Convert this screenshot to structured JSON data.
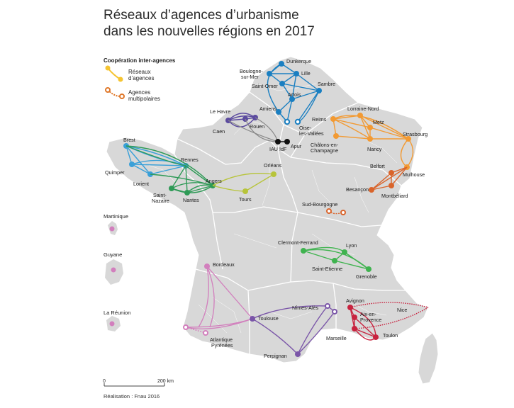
{
  "title": {
    "line1": "Réseaux d’agences d’urbanisme",
    "line2": "dans les nouvelles régions en 2017"
  },
  "legend": {
    "heading": "Coopération inter-agences",
    "items": [
      {
        "label_line1": "Réseaux",
        "label_line2": "d’agences",
        "style": "solid",
        "color": "#f5c431"
      },
      {
        "label_line1": "Agences",
        "label_line2": "multipolaires",
        "style": "dashed-hollow",
        "color": "#e0782a"
      }
    ]
  },
  "territories": [
    {
      "name": "Martinique"
    },
    {
      "name": "Guyane"
    },
    {
      "name": "La Réunion"
    }
  ],
  "networks": [
    {
      "id": "hauts-de-france",
      "color": "#1a7fc1",
      "cities": [
        "Dunkerque",
        "Boulogne-sur-Mer",
        "Lille",
        "Saint-Omer",
        "Artois",
        "Sambre",
        "Amiens",
        "Oise-les-Vallées"
      ]
    },
    {
      "id": "normandie",
      "color": "#5b4a9f",
      "cities": [
        "Le Havre",
        "Rouen",
        "Caen"
      ]
    },
    {
      "id": "ile-de-france",
      "color": "#111111",
      "cities": [
        "IAU IdF",
        "Apur"
      ]
    },
    {
      "id": "grand-est",
      "color": "#f29a33",
      "cities": [
        "Reims",
        "Lorraine-Nord",
        "Metz",
        "Châlons-en-Champagne",
        "Nancy",
        "Strasbourg"
      ]
    },
    {
      "id": "bretagne",
      "color": "#3aa0d8",
      "cities": [
        "Brest",
        "Quimper",
        "Lorient",
        "Rennes"
      ]
    },
    {
      "id": "pays-de-la-loire",
      "color": "#2e9a56",
      "cities": [
        "Saint-Nazaire",
        "Nantes",
        "Angers"
      ]
    },
    {
      "id": "centre",
      "color": "#b7c43a",
      "cities": [
        "Orléans",
        "Tours"
      ]
    },
    {
      "id": "bourgogne-franche-comte",
      "color": "#d9642b",
      "cities": [
        "Belfort",
        "Mulhouse",
        "Besançon",
        "Montbéliard",
        "Sud-Bourgogne"
      ]
    },
    {
      "id": "auvergne-rhone-alpes",
      "color": "#3fb34f",
      "cities": [
        "Clermont-Ferrand",
        "Lyon",
        "Saint-Etienne",
        "Grenoble"
      ]
    },
    {
      "id": "nouvelle-aquitaine",
      "color": "#d27fbd",
      "cities": [
        "Bordeaux",
        "Atlantique Pyrénées"
      ]
    },
    {
      "id": "occitanie",
      "color": "#7a55a8",
      "cities": [
        "Toulouse",
        "Nîmes-Alès",
        "Perpignan"
      ]
    },
    {
      "id": "paca",
      "color": "#c8233f",
      "cities": [
        "Avignon",
        "Aix-en-Provence",
        "Marseille",
        "Toulon",
        "Nice"
      ]
    }
  ],
  "labels": {
    "dunkerque": "Dunkerque",
    "boulogne1": "Boulogne-",
    "boulogne2": "sur-Mer",
    "lille": "Lille",
    "saintomer": "Saint-Omer",
    "artois": "Artois",
    "sambre": "Sambre",
    "amiens": "Amiens",
    "oise1": "Oise-",
    "oise2": "les-Vallées",
    "lehavre": "Le Havre",
    "rouen": "Rouen",
    "caen": "Caen",
    "iau": "IAU IdF",
    "apur": "Apur",
    "reims": "Reims",
    "lorraine": "Lorraine-Nord",
    "metz": "Metz",
    "strasbourg": "Strasbourg",
    "chalons1": "Châlons-en-",
    "chalons2": "Champagne",
    "nancy": "Nancy",
    "brest": "Brest",
    "rennes": "Rennes",
    "quimper": "Quimper",
    "lorient": "Lorient",
    "saintnazaire1": "Saint-",
    "saintnazaire2": "Nazaire",
    "nantes": "Nantes",
    "angers": "Angers",
    "orleans": "Orléans",
    "tours": "Tours",
    "belfort": "Belfort",
    "mulhouse": "Mulhouse",
    "besancon": "Besançon",
    "montbeliard": "Montbéliard",
    "sudbourgogne": "Sud-Bourgogne",
    "clermont": "Clermont-Ferrand",
    "lyon": "Lyon",
    "saintetienne": "Saint-Etienne",
    "grenoble": "Grenoble",
    "bordeaux": "Bordeaux",
    "atlantique1": "Atlantique",
    "atlantique2": "Pyrénées",
    "toulouse": "Toulouse",
    "nimes": "Nîmes-Alès",
    "perpignan": "Perpignan",
    "avignon": "Avignon",
    "aix1": "Aix-en-",
    "aix2": "Provence",
    "marseille": "Marseille",
    "toulon": "Toulon",
    "nice": "Nice"
  },
  "scale": {
    "start": "0",
    "end": "200 km"
  },
  "credit": "Réalisation : Fnau 2016"
}
